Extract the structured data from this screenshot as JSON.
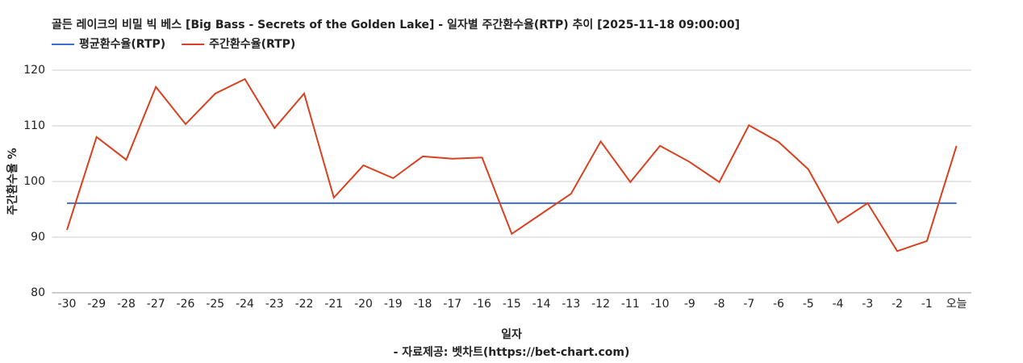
{
  "chart_data": {
    "type": "line",
    "title": "골든 레이크의 비밀 빅 베스 [Big Bass - Secrets of the Golden Lake] - 일자별 주간환수율(RTP) 추이 [2025-11-18 09:00:00]",
    "x_label": "일자",
    "y_label": "주간환수율 %",
    "source": "- 자료제공: 벳차트(https://bet-chart.com)",
    "categories": [
      "-30",
      "-29",
      "-28",
      "-27",
      "-26",
      "-25",
      "-24",
      "-23",
      "-22",
      "-21",
      "-20",
      "-19",
      "-18",
      "-17",
      "-16",
      "-15",
      "-14",
      "-13",
      "-12",
      "-11",
      "-10",
      "-9",
      "-8",
      "-7",
      "-6",
      "-5",
      "-4",
      "-3",
      "-2",
      "-1",
      "오늘"
    ],
    "series": [
      {
        "name": "평균환수율(RTP)",
        "color": "#3f6fc6",
        "values": [
          96.1,
          96.1,
          96.1,
          96.1,
          96.1,
          96.1,
          96.1,
          96.1,
          96.1,
          96.1,
          96.1,
          96.1,
          96.1,
          96.1,
          96.1,
          96.1,
          96.1,
          96.1,
          96.1,
          96.1,
          96.1,
          96.1,
          96.1,
          96.1,
          96.1,
          96.1,
          96.1,
          96.1,
          96.1,
          96.1,
          96.1
        ]
      },
      {
        "name": "주간환수율(RTP)",
        "color": "#d9401f",
        "values": [
          91.3,
          108.0,
          103.9,
          117.0,
          110.3,
          115.8,
          118.4,
          109.6,
          115.8,
          97.1,
          102.9,
          100.6,
          104.5,
          104.1,
          104.3,
          90.6,
          94.2,
          97.8,
          107.2,
          99.9,
          106.4,
          103.5,
          99.9,
          110.1,
          107.1,
          102.2,
          92.6,
          96.1,
          87.5,
          89.3,
          106.4
        ]
      }
    ],
    "ylim": [
      80,
      120
    ],
    "yticks": [
      80,
      90,
      100,
      110,
      120
    ],
    "grid": true
  }
}
